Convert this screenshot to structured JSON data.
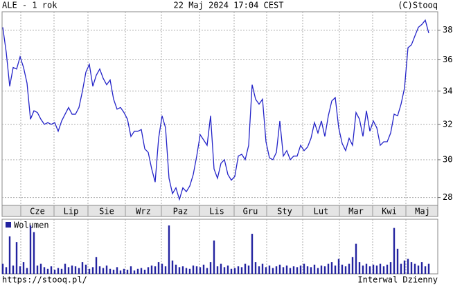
{
  "chart_data": [
    {
      "type": "line",
      "title": "ALE - 1 rok",
      "subtitle": "22 Maj 2024 17:04 CEST",
      "credit": "(C)Stooq",
      "color": "#2323c8",
      "log": true,
      "grid": true,
      "ylim": [
        27.6,
        39.3
      ],
      "yticks": [
        28,
        30,
        32,
        34,
        36,
        38
      ],
      "xlim": [
        -0.2,
        125.6
      ],
      "xticks": [
        {
          "value": 5.2,
          "label": "Cze"
        },
        {
          "value": 14.8,
          "label": "Lip"
        },
        {
          "value": 24.6,
          "label": "Sie"
        },
        {
          "value": 35.4,
          "label": "Wrz"
        },
        {
          "value": 45.8,
          "label": "Paz"
        },
        {
          "value": 56.8,
          "label": "Lis"
        },
        {
          "value": 66.8,
          "label": "Gru"
        },
        {
          "value": 76.2,
          "label": "Sty"
        },
        {
          "value": 86.6,
          "label": "Lut"
        },
        {
          "value": 97.2,
          "label": "Mar"
        },
        {
          "value": 106.8,
          "label": "Kwi"
        },
        {
          "value": 116.4,
          "label": "Maj"
        }
      ],
      "values": [
        38.2,
        36.5,
        34.3,
        35.5,
        35.4,
        36.2,
        35.5,
        34.5,
        32.3,
        32.8,
        32.7,
        32.3,
        32.0,
        32.1,
        32.0,
        32.1,
        31.6,
        32.2,
        32.6,
        33.0,
        32.6,
        32.6,
        33.0,
        34.0,
        35.2,
        35.7,
        34.3,
        35.0,
        35.4,
        34.8,
        34.4,
        34.7,
        33.5,
        32.9,
        33.0,
        32.7,
        32.3,
        31.3,
        31.6,
        31.6,
        31.7,
        30.6,
        30.4,
        29.5,
        28.8,
        31.2,
        32.5,
        31.8,
        29.0,
        28.2,
        28.5,
        27.9,
        28.5,
        28.3,
        28.6,
        29.2,
        30.2,
        31.4,
        31.1,
        30.8,
        32.5,
        29.5,
        29.0,
        29.8,
        30.0,
        29.2,
        28.9,
        29.1,
        30.2,
        30.3,
        30.0,
        30.8,
        34.4,
        33.5,
        33.2,
        33.5,
        31.0,
        30.1,
        30.0,
        30.4,
        32.2,
        30.2,
        30.5,
        30.0,
        30.2,
        30.2,
        30.8,
        30.5,
        30.7,
        31.2,
        32.1,
        31.5,
        32.2,
        31.3,
        32.5,
        33.4,
        33.6,
        31.8,
        30.9,
        30.5,
        31.2,
        30.8,
        32.7,
        32.3,
        31.3,
        32.8,
        31.6,
        32.2,
        31.8,
        30.8,
        31.0,
        31.0,
        31.5,
        32.6,
        32.5,
        33.2,
        34.2,
        36.8,
        37.0,
        37.6,
        38.2,
        38.4,
        38.7,
        37.8
      ]
    },
    {
      "type": "bar",
      "xlim": [
        -0.2,
        125.6
      ],
      "series": [
        {
          "name": "Wolumen",
          "color": "#2323a0",
          "values": [
            12,
            8,
            45,
            10,
            38,
            9,
            14,
            7,
            58,
            50,
            10,
            12,
            8,
            6,
            9,
            5,
            7,
            6,
            12,
            8,
            10,
            9,
            7,
            14,
            11,
            6,
            8,
            20,
            9,
            7,
            10,
            6,
            5,
            8,
            4,
            6,
            5,
            9,
            4,
            6,
            7,
            5,
            8,
            10,
            9,
            14,
            12,
            9,
            58,
            16,
            11,
            8,
            9,
            7,
            6,
            10,
            9,
            8,
            11,
            7,
            14,
            40,
            9,
            12,
            8,
            10,
            6,
            7,
            9,
            8,
            12,
            10,
            48,
            14,
            9,
            12,
            8,
            10,
            7,
            9,
            11,
            8,
            10,
            7,
            9,
            8,
            10,
            12,
            9,
            8,
            11,
            7,
            10,
            9,
            12,
            14,
            10,
            18,
            11,
            9,
            12,
            20,
            36,
            14,
            10,
            12,
            9,
            11,
            10,
            12,
            9,
            11,
            14,
            55,
            30,
            12,
            16,
            18,
            14,
            12,
            10,
            14,
            9,
            12
          ]
        }
      ]
    }
  ],
  "footer": {
    "url": "https://stooq.pl/",
    "interval": "Interwal Dzienny"
  }
}
